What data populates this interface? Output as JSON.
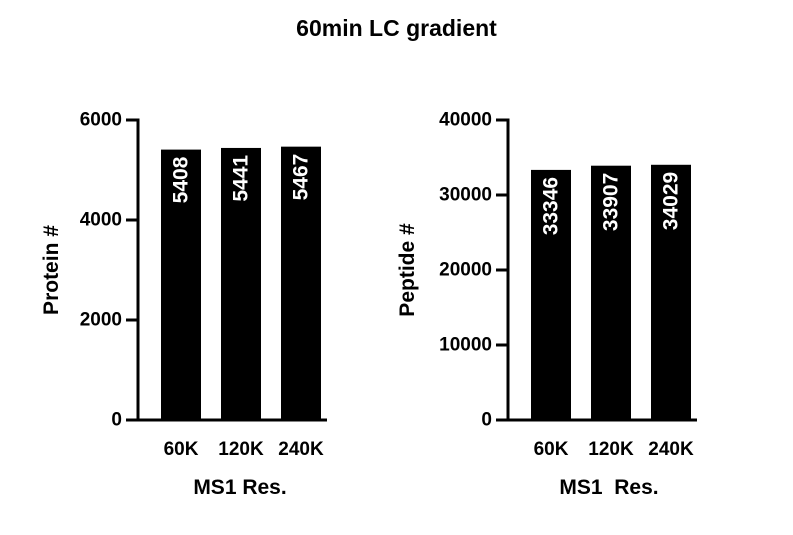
{
  "title": "60min LC gradient",
  "chart_data": [
    {
      "type": "bar",
      "categories": [
        "60K",
        "120K",
        "240K"
      ],
      "values": [
        5408,
        5441,
        5467
      ],
      "data_labels": [
        "5408",
        "5441",
        "5467"
      ],
      "xlabel": "MS1 Res.",
      "ylabel": "Protein #",
      "ylim": [
        0,
        6000
      ],
      "yticks": [
        0,
        2000,
        4000,
        6000
      ],
      "bar_color": "#000000",
      "label_color": "#ffffff",
      "grid": false
    },
    {
      "type": "bar",
      "categories": [
        "60K",
        "120K",
        "240K"
      ],
      "values": [
        33346,
        33907,
        34029
      ],
      "data_labels": [
        "33346",
        "33907",
        "34029"
      ],
      "xlabel": "MS1  Res.",
      "ylabel": "Peptide #",
      "ylim": [
        0,
        40000
      ],
      "yticks": [
        0,
        10000,
        20000,
        30000,
        40000
      ],
      "bar_color": "#000000",
      "label_color": "#ffffff",
      "grid": false
    }
  ]
}
